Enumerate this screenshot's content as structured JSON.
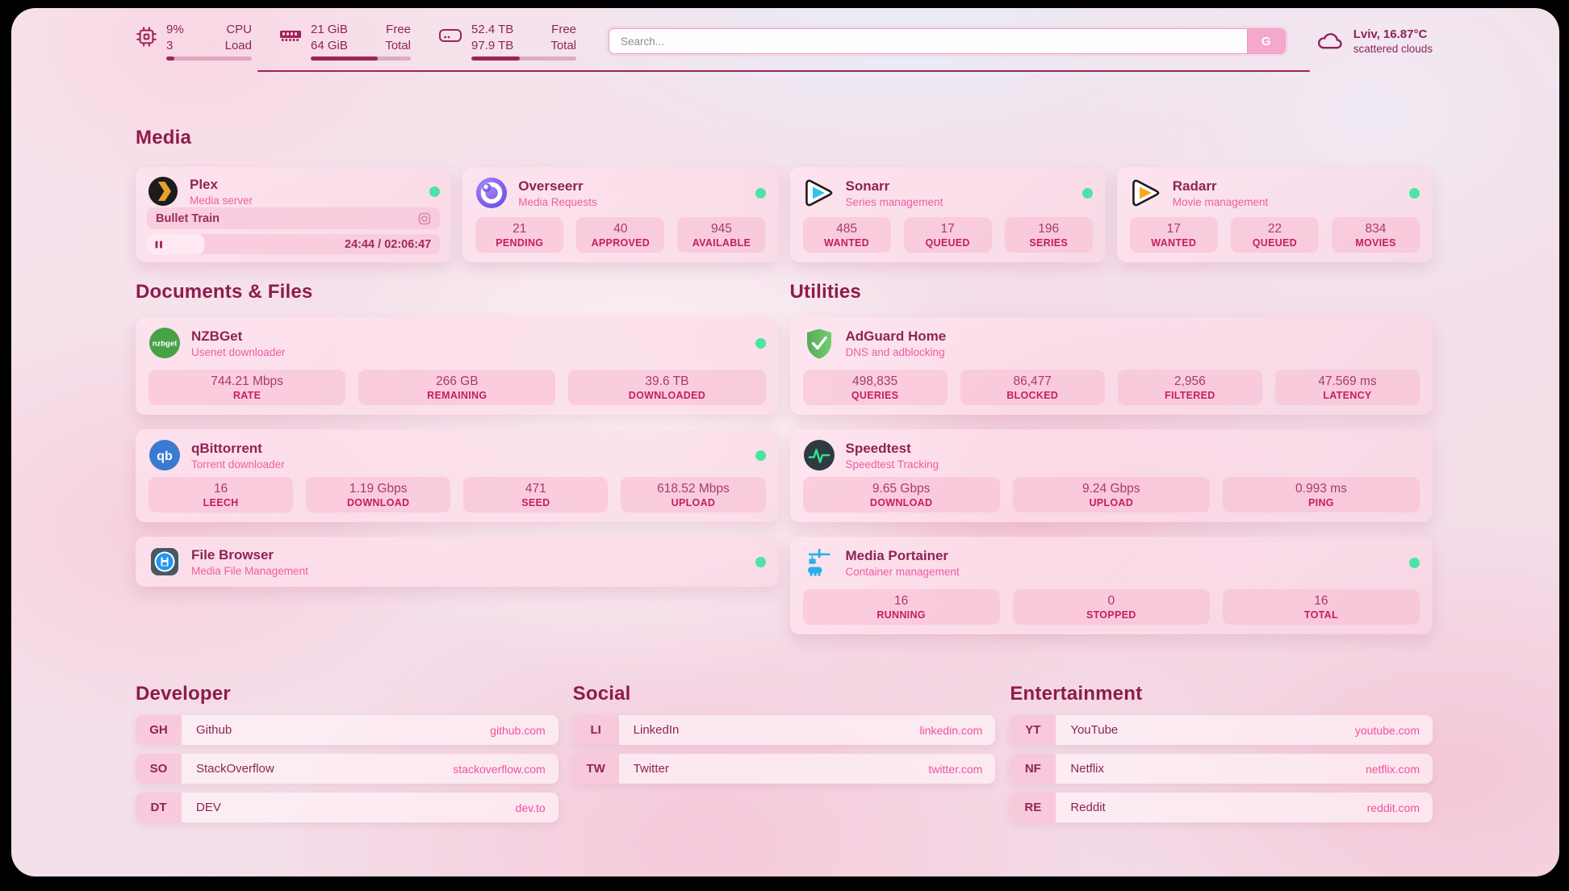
{
  "header": {
    "stats": [
      {
        "icon": "cpu-icon",
        "values": [
          "9%",
          "3"
        ],
        "labels": [
          "CPU",
          "Load"
        ],
        "progress_pct": 9
      },
      {
        "icon": "ram-icon",
        "values": [
          "21 GiB",
          "64 GiB"
        ],
        "labels": [
          "Free",
          "Total"
        ],
        "progress_pct": 67
      },
      {
        "icon": "disk-icon",
        "values": [
          "52.4 TB",
          "97.9 TB"
        ],
        "labels": [
          "Free",
          "Total"
        ],
        "progress_pct": 46
      }
    ],
    "search_placeholder": "Search...",
    "search_button": "G",
    "weather": {
      "location": "Lviv, 16.87°C",
      "condition": "scattered clouds",
      "icon": "cloud-icon"
    }
  },
  "colors": {
    "accent": "#9c2458",
    "subtitle_pink": "#ee5da2",
    "url_pink": "#f1509e",
    "status_green": "#4ce3a4"
  },
  "media": {
    "title": "Media",
    "plex": {
      "name": "Plex",
      "subtitle": "Media server",
      "online": true,
      "now_playing": "Bullet Train",
      "time": "24:44 / 02:06:47",
      "progress_pct": 19.5
    },
    "overseerr": {
      "name": "Overseerr",
      "subtitle": "Media Requests",
      "online": true,
      "stats": [
        {
          "value": "21",
          "label": "PENDING"
        },
        {
          "value": "40",
          "label": "APPROVED"
        },
        {
          "value": "945",
          "label": "AVAILABLE"
        }
      ]
    },
    "sonarr": {
      "name": "Sonarr",
      "subtitle": "Series management",
      "online": true,
      "stats": [
        {
          "value": "485",
          "label": "WANTED"
        },
        {
          "value": "17",
          "label": "QUEUED"
        },
        {
          "value": "196",
          "label": "SERIES"
        }
      ]
    },
    "radarr": {
      "name": "Radarr",
      "subtitle": "Movie management",
      "online": true,
      "stats": [
        {
          "value": "17",
          "label": "WANTED"
        },
        {
          "value": "22",
          "label": "QUEUED"
        },
        {
          "value": "834",
          "label": "MOVIES"
        }
      ]
    }
  },
  "documents": {
    "title": "Documents & Files",
    "nzbget": {
      "name": "NZBGet",
      "subtitle": "Usenet downloader",
      "online": true,
      "stats": [
        {
          "value": "744.21 Mbps",
          "label": "RATE"
        },
        {
          "value": "266 GB",
          "label": "REMAINING"
        },
        {
          "value": "39.6 TB",
          "label": "DOWNLOADED"
        }
      ]
    },
    "qbittorrent": {
      "name": "qBittorrent",
      "subtitle": "Torrent downloader",
      "online": true,
      "stats": [
        {
          "value": "16",
          "label": "LEECH"
        },
        {
          "value": "1.19 Gbps",
          "label": "DOWNLOAD"
        },
        {
          "value": "471",
          "label": "SEED"
        },
        {
          "value": "618.52 Mbps",
          "label": "UPLOAD"
        }
      ]
    },
    "filebrowser": {
      "name": "File Browser",
      "subtitle": "Media File Management",
      "online": true
    }
  },
  "utilities": {
    "title": "Utilities",
    "adguard": {
      "name": "AdGuard Home",
      "subtitle": "DNS and adblocking",
      "stats": [
        {
          "value": "498,835",
          "label": "QUERIES"
        },
        {
          "value": "86,477",
          "label": "BLOCKED"
        },
        {
          "value": "2,956",
          "label": "FILTERED"
        },
        {
          "value": "47.569 ms",
          "label": "LATENCY"
        }
      ]
    },
    "speedtest": {
      "name": "Speedtest",
      "subtitle": "Speedtest Tracking",
      "stats": [
        {
          "value": "9.65 Gbps",
          "label": "DOWNLOAD"
        },
        {
          "value": "9.24 Gbps",
          "label": "UPLOAD"
        },
        {
          "value": "0.993 ms",
          "label": "PING"
        }
      ]
    },
    "portainer": {
      "name": "Media Portainer",
      "subtitle": "Container management",
      "online": true,
      "stats": [
        {
          "value": "16",
          "label": "RUNNING"
        },
        {
          "value": "0",
          "label": "STOPPED"
        },
        {
          "value": "16",
          "label": "TOTAL"
        }
      ]
    }
  },
  "bookmarks": {
    "developer": {
      "title": "Developer",
      "items": [
        {
          "abbr": "GH",
          "name": "Github",
          "url": "github.com"
        },
        {
          "abbr": "SO",
          "name": "StackOverflow",
          "url": "stackoverflow.com"
        },
        {
          "abbr": "DT",
          "name": "DEV",
          "url": "dev.to"
        }
      ]
    },
    "social": {
      "title": "Social",
      "items": [
        {
          "abbr": "LI",
          "name": "LinkedIn",
          "url": "linkedin.com"
        },
        {
          "abbr": "TW",
          "name": "Twitter",
          "url": "twitter.com"
        }
      ]
    },
    "entertainment": {
      "title": "Entertainment",
      "items": [
        {
          "abbr": "YT",
          "name": "YouTube",
          "url": "youtube.com"
        },
        {
          "abbr": "NF",
          "name": "Netflix",
          "url": "netflix.com"
        },
        {
          "abbr": "RE",
          "name": "Reddit",
          "url": "reddit.com"
        }
      ]
    }
  },
  "icon_texts": {
    "nzbget": "nzbget",
    "qbittorrent": "qb"
  }
}
